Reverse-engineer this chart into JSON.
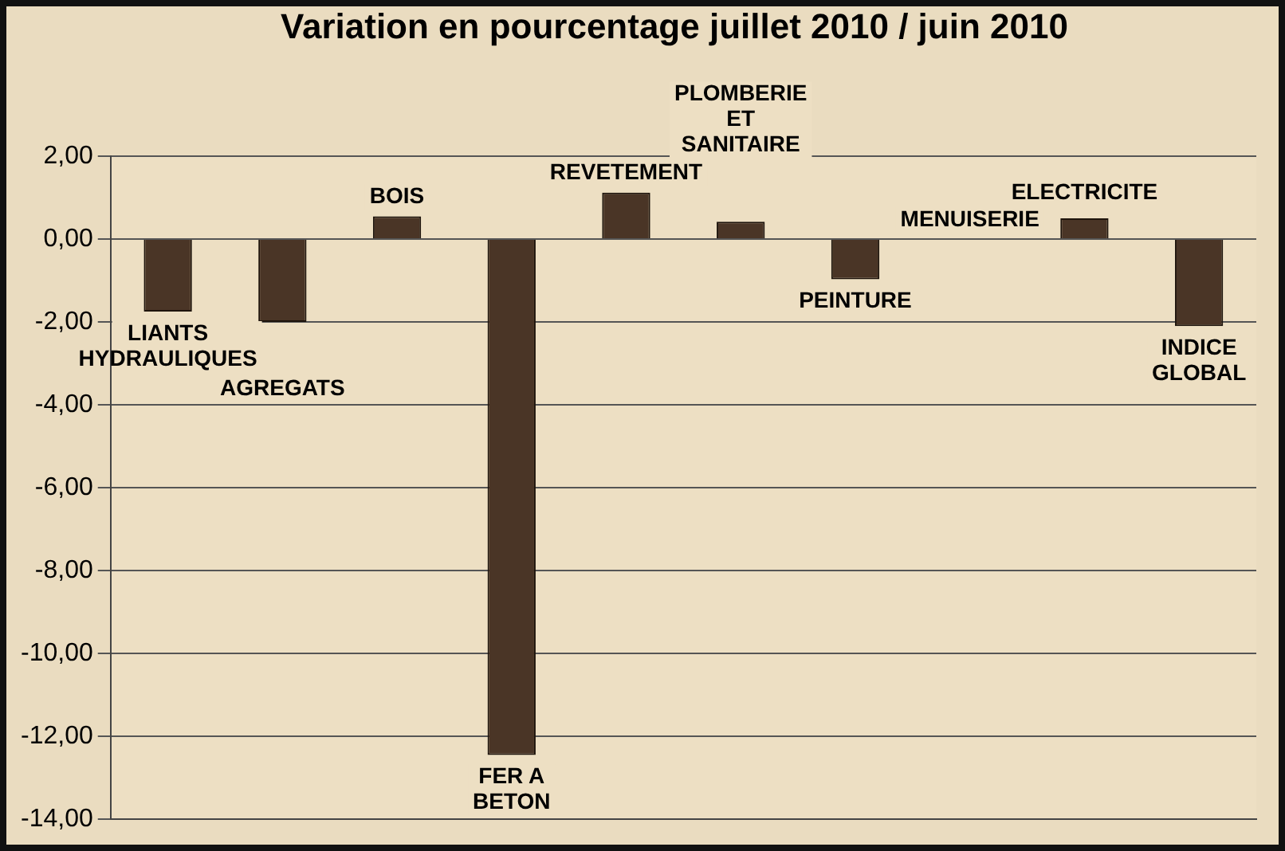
{
  "chart_data": {
    "type": "bar",
    "title": "Variation en pourcentage juillet 2010 / juin 2010",
    "categories": [
      "LIANTS HYDRAULIQUES",
      "AGREGATS",
      "BOIS",
      "FER A BETON",
      "REVETEMENT",
      "PLOMBERIE ET SANITAIRE",
      "PEINTURE",
      "MENUISERIE",
      "ELECTRICITE",
      "INDICE GLOBAL"
    ],
    "values": [
      -1.75,
      -2.0,
      0.55,
      -12.45,
      1.12,
      0.42,
      -0.97,
      0,
      0.5,
      -2.1
    ],
    "color": "#4a3526",
    "ylim": [
      -14,
      2
    ],
    "yticks": [
      {
        "value": 2,
        "label": "2,00"
      },
      {
        "value": 0,
        "label": "0,00"
      },
      {
        "value": -2,
        "label": "-2,00"
      },
      {
        "value": -4,
        "label": "-4,00"
      },
      {
        "value": -6,
        "label": "-6,00"
      },
      {
        "value": -8,
        "label": "-8,00"
      },
      {
        "value": -10,
        "label": "-10,00"
      },
      {
        "value": -12,
        "label": "-12,00"
      },
      {
        "value": -14,
        "label": "-14,00"
      }
    ],
    "grid": "y",
    "tick_labels": "y"
  }
}
